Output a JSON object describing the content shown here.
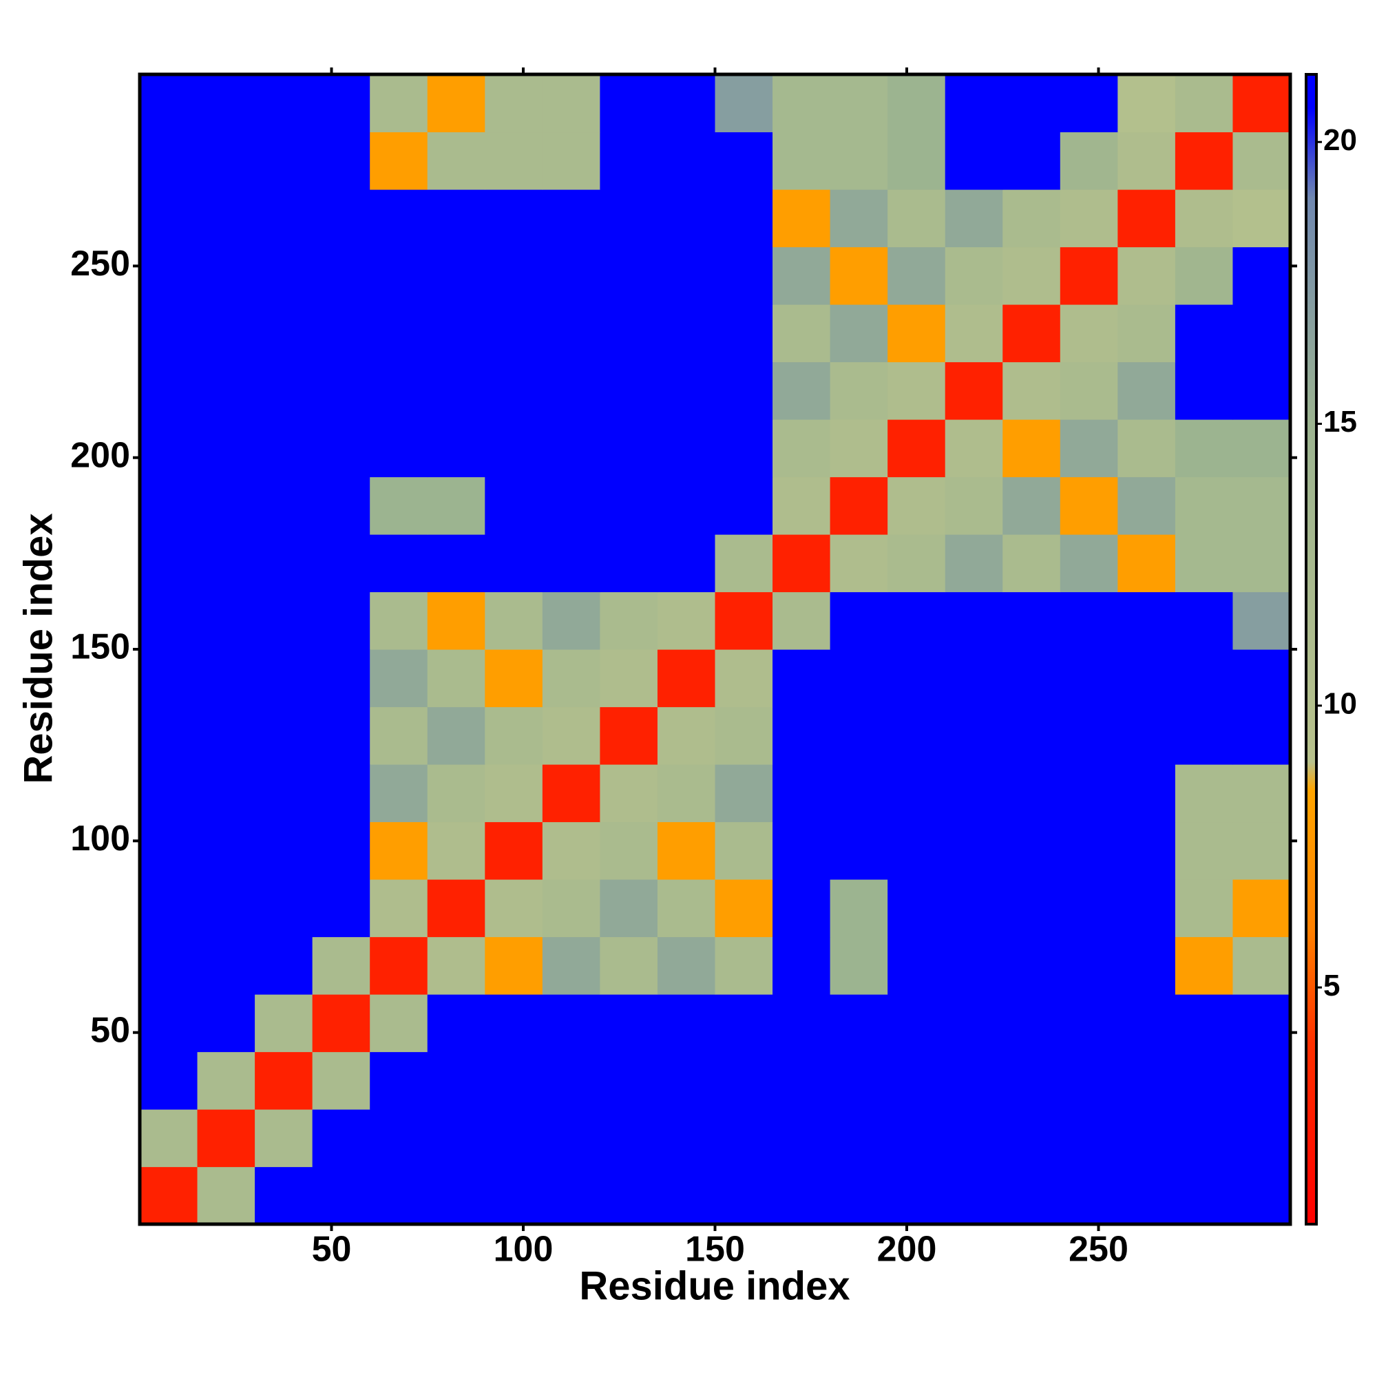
{
  "chart_data": {
    "type": "heatmap",
    "xlabel": "Residue index",
    "ylabel": "Residue index",
    "x": [
      7.5,
      22.5,
      37.5,
      52.5,
      67.5,
      82.5,
      97.5,
      112.5,
      127.5,
      142.5,
      157.5,
      172.5,
      187.5,
      202.5,
      217.5,
      232.5,
      247.5,
      262.5,
      277.5,
      292.5
    ],
    "y": [
      7.5,
      22.5,
      37.5,
      52.5,
      67.5,
      82.5,
      97.5,
      112.5,
      127.5,
      142.5,
      157.5,
      172.5,
      187.5,
      202.5,
      217.5,
      232.5,
      247.5,
      262.5,
      277.5,
      292.5
    ],
    "z": [
      [
        3,
        12,
        21,
        21,
        21,
        21,
        21,
        21,
        21,
        21,
        21,
        21,
        21,
        21,
        21,
        21,
        21,
        21,
        21,
        21
      ],
      [
        12,
        3,
        12,
        21,
        21,
        21,
        21,
        21,
        21,
        21,
        21,
        21,
        21,
        21,
        21,
        21,
        21,
        21,
        21,
        21
      ],
      [
        21,
        12,
        3,
        12,
        21,
        21,
        21,
        21,
        21,
        21,
        21,
        21,
        21,
        21,
        21,
        21,
        21,
        21,
        21,
        21
      ],
      [
        21,
        21,
        12,
        3,
        12,
        21,
        21,
        21,
        21,
        21,
        21,
        21,
        21,
        21,
        21,
        21,
        21,
        21,
        21,
        21
      ],
      [
        21,
        21,
        21,
        12,
        3,
        11,
        8,
        16,
        12,
        16,
        12,
        21,
        15,
        21,
        21,
        21,
        21,
        21,
        8,
        12
      ],
      [
        21,
        21,
        21,
        21,
        11,
        3,
        11,
        12,
        16,
        12,
        8,
        21,
        15,
        21,
        21,
        21,
        21,
        21,
        12,
        8
      ],
      [
        21,
        21,
        21,
        21,
        8,
        11,
        3,
        11,
        12,
        8,
        12,
        21,
        21,
        21,
        21,
        21,
        21,
        21,
        12,
        12
      ],
      [
        21,
        21,
        21,
        21,
        16,
        12,
        11,
        3,
        11,
        12,
        16,
        21,
        21,
        21,
        21,
        21,
        21,
        21,
        12,
        12
      ],
      [
        21,
        21,
        21,
        21,
        12,
        16,
        12,
        11,
        3,
        11,
        12,
        21,
        21,
        21,
        21,
        21,
        21,
        21,
        21,
        21
      ],
      [
        21,
        21,
        21,
        21,
        16,
        12,
        8,
        12,
        11,
        3,
        11,
        21,
        21,
        21,
        21,
        21,
        21,
        21,
        21,
        21
      ],
      [
        21,
        21,
        21,
        21,
        12,
        8,
        12,
        16,
        12,
        11,
        3,
        12,
        21,
        21,
        21,
        21,
        21,
        21,
        21,
        17
      ],
      [
        21,
        21,
        21,
        21,
        21,
        21,
        21,
        21,
        21,
        21,
        12,
        3,
        11,
        12,
        16,
        12,
        16,
        8,
        13,
        13
      ],
      [
        21,
        21,
        21,
        21,
        15,
        15,
        21,
        21,
        21,
        21,
        21,
        11,
        3,
        11,
        12,
        16,
        8,
        16,
        13,
        13
      ],
      [
        21,
        21,
        21,
        21,
        21,
        21,
        21,
        21,
        21,
        21,
        21,
        12,
        11,
        3,
        11,
        8,
        16,
        12,
        15,
        15
      ],
      [
        21,
        21,
        21,
        21,
        21,
        21,
        21,
        21,
        21,
        21,
        21,
        16,
        12,
        11,
        3,
        11,
        12,
        16,
        21,
        21
      ],
      [
        21,
        21,
        21,
        21,
        21,
        21,
        21,
        21,
        21,
        21,
        21,
        12,
        16,
        8,
        11,
        3,
        11,
        12,
        21,
        21
      ],
      [
        21,
        21,
        21,
        21,
        21,
        21,
        21,
        21,
        21,
        21,
        21,
        16,
        8,
        16,
        12,
        11,
        3,
        11,
        14,
        21
      ],
      [
        21,
        21,
        21,
        21,
        21,
        21,
        21,
        21,
        21,
        21,
        21,
        8,
        16,
        12,
        16,
        12,
        11,
        3,
        11,
        10
      ],
      [
        21,
        21,
        21,
        21,
        8,
        12,
        12,
        12,
        21,
        21,
        21,
        13,
        13,
        15,
        21,
        21,
        14,
        11,
        3,
        12
      ],
      [
        21,
        21,
        21,
        21,
        12,
        8,
        12,
        12,
        21,
        21,
        17,
        13,
        13,
        15,
        21,
        21,
        21,
        10,
        12,
        3
      ]
    ],
    "xlim": [
      0,
      300
    ],
    "ylim": [
      0,
      300
    ],
    "xticks": [
      50,
      100,
      150,
      200,
      250
    ],
    "yticks": [
      50,
      100,
      150,
      200,
      250
    ],
    "clim": [
      0.8,
      21.2
    ],
    "cticks": [
      5,
      10,
      15,
      20
    ],
    "colorscale": [
      [
        0.8,
        "#ff0000"
      ],
      [
        4,
        "#ff3000"
      ],
      [
        6,
        "#ff8000"
      ],
      [
        8.5,
        "#ffa500"
      ],
      [
        9,
        "#b8c28c"
      ],
      [
        15,
        "#9cb490"
      ],
      [
        19,
        "#7088b0"
      ],
      [
        20.6,
        "#0000ff"
      ]
    ]
  }
}
